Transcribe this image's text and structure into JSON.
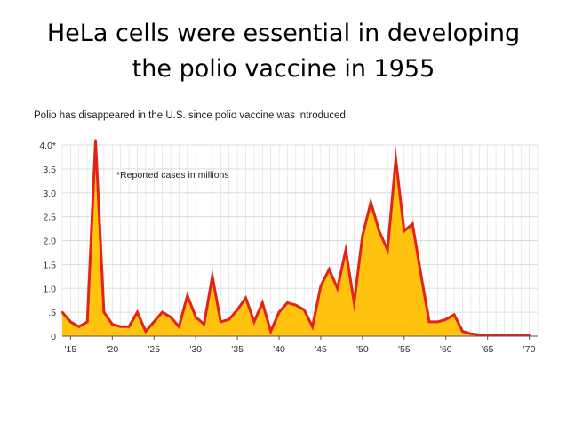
{
  "slide": {
    "title_line1": "HeLa cells were essential in developing",
    "title_line2": "the polio vaccine in 1955"
  },
  "chart_data": {
    "type": "area",
    "title": "Polio has disappeared in the U.S. since polio vaccine was introduced.",
    "annotation": "*Reported cases in millions",
    "xlabel": "",
    "ylabel": "",
    "ylim": [
      0,
      4.0
    ],
    "xlim": [
      1914,
      1971
    ],
    "grid": true,
    "y_ticks": [
      {
        "value": 4.0,
        "label": "4.0*"
      },
      {
        "value": 3.5,
        "label": "3.5"
      },
      {
        "value": 3.0,
        "label": "3.0"
      },
      {
        "value": 2.5,
        "label": "2.5"
      },
      {
        "value": 2.0,
        "label": "2.0"
      },
      {
        "value": 1.5,
        "label": "1.5"
      },
      {
        "value": 1.0,
        "label": "1.0"
      },
      {
        "value": 0.5,
        "label": ".5"
      },
      {
        "value": 0,
        "label": "0"
      }
    ],
    "x_ticks": [
      {
        "value": 1915,
        "label": "'15"
      },
      {
        "value": 1920,
        "label": "'20"
      },
      {
        "value": 1925,
        "label": "'25"
      },
      {
        "value": 1930,
        "label": "'30"
      },
      {
        "value": 1935,
        "label": "'35"
      },
      {
        "value": 1940,
        "label": "'40"
      },
      {
        "value": 1945,
        "label": "'45"
      },
      {
        "value": 1950,
        "label": "'50"
      },
      {
        "value": 1955,
        "label": "'55"
      },
      {
        "value": 1960,
        "label": "'60"
      },
      {
        "value": 1965,
        "label": "'65"
      },
      {
        "value": 1970,
        "label": "'70"
      }
    ],
    "x": [
      1914,
      1915,
      1916,
      1917,
      1918,
      1919,
      1920,
      1921,
      1922,
      1923,
      1924,
      1925,
      1926,
      1927,
      1928,
      1929,
      1930,
      1931,
      1932,
      1933,
      1934,
      1935,
      1936,
      1937,
      1938,
      1939,
      1940,
      1941,
      1942,
      1943,
      1944,
      1945,
      1946,
      1947,
      1948,
      1949,
      1950,
      1951,
      1952,
      1953,
      1954,
      1955,
      1956,
      1957,
      1958,
      1959,
      1960,
      1961,
      1962,
      1963,
      1964,
      1965,
      1966,
      1967,
      1968,
      1969,
      1970
    ],
    "series": [
      {
        "values": [
          0.5,
          0.3,
          0.2,
          0.3,
          4.1,
          0.5,
          0.25,
          0.2,
          0.2,
          0.5,
          0.1,
          0.3,
          0.5,
          0.4,
          0.2,
          0.85,
          0.4,
          0.25,
          1.25,
          0.3,
          0.35,
          0.55,
          0.8,
          0.3,
          0.7,
          0.1,
          0.5,
          0.7,
          0.65,
          0.55,
          0.2,
          1.05,
          1.4,
          1.0,
          1.8,
          0.7,
          2.1,
          2.8,
          2.2,
          1.8,
          3.7,
          2.2,
          2.35,
          1.3,
          0.3,
          0.3,
          0.35,
          0.45,
          0.1,
          0.05,
          0.03,
          0.02,
          0.02,
          0.02,
          0.02,
          0.02,
          0.02
        ],
        "line_color": "#e2231a",
        "fill_color": "#ffc20e"
      }
    ],
    "colors": {
      "grid": "#dddddd",
      "axis": "#555555"
    }
  }
}
